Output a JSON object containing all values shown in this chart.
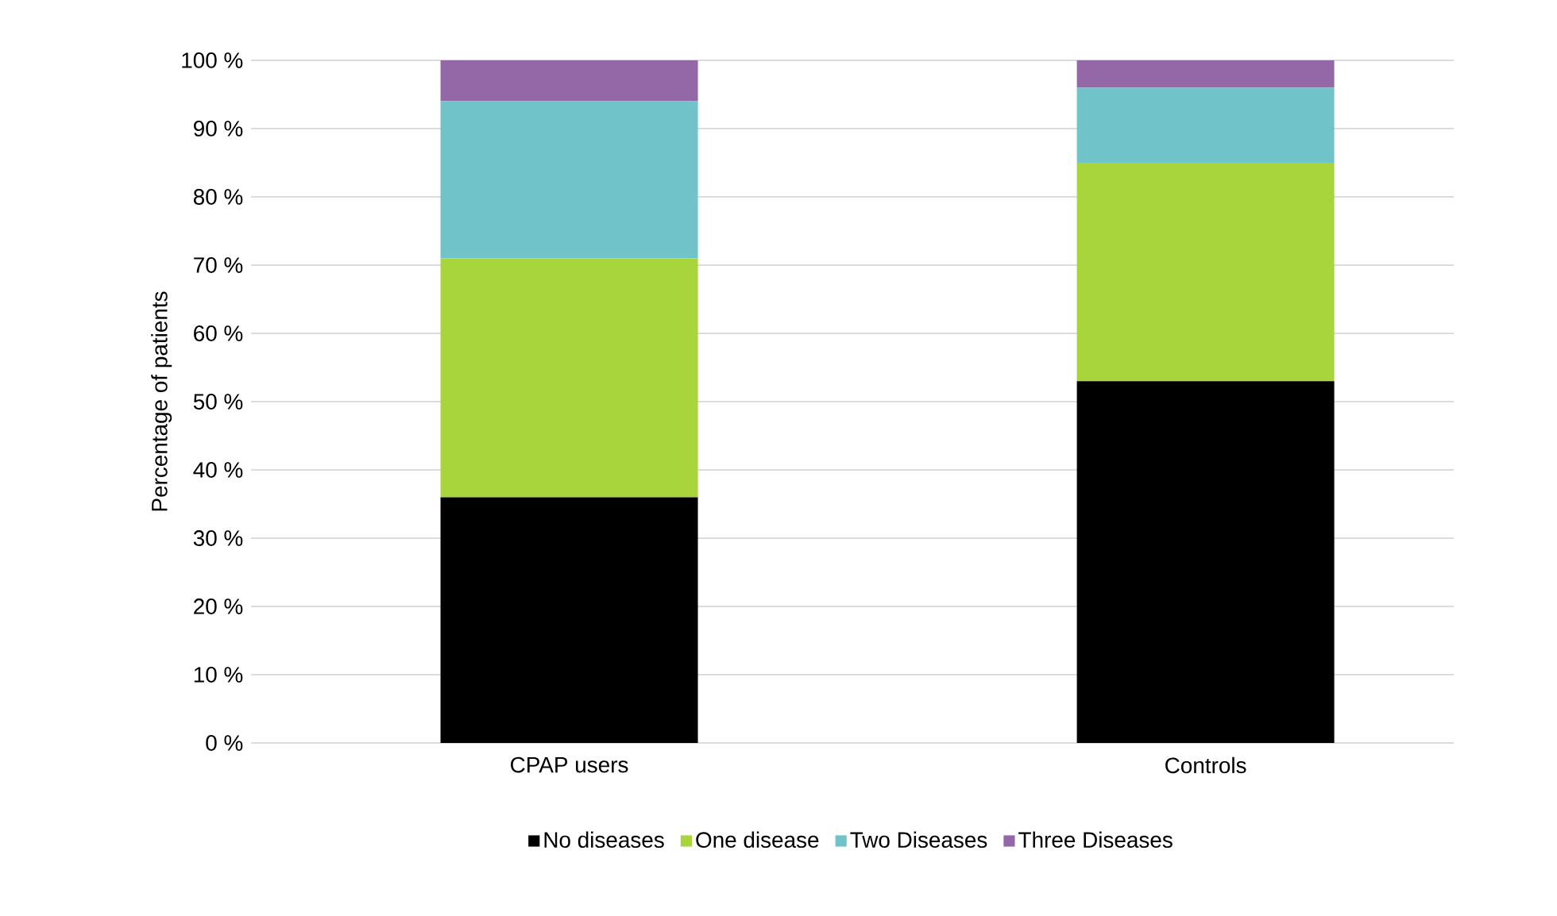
{
  "chart_data": {
    "type": "bar",
    "stacked": true,
    "ylabel": "Percentage of patients",
    "categories": [
      "CPAP users",
      "Controls"
    ],
    "series": [
      {
        "name": "No diseases",
        "color": "#000000",
        "values": [
          36,
          53
        ]
      },
      {
        "name": "One disease",
        "color": "#a9d53c",
        "values": [
          35,
          32
        ]
      },
      {
        "name": "Two Diseases",
        "color": "#70c4c9",
        "values": [
          23,
          11
        ]
      },
      {
        "name": "Three Diseases",
        "color": "#9467a6",
        "values": [
          6,
          4
        ]
      }
    ],
    "ylim": [
      0,
      100
    ],
    "yticks": [
      {
        "value": 0,
        "label": "0 %"
      },
      {
        "value": 10,
        "label": "10 %"
      },
      {
        "value": 20,
        "label": "20 %"
      },
      {
        "value": 30,
        "label": "30 %"
      },
      {
        "value": 40,
        "label": "40 %"
      },
      {
        "value": 50,
        "label": "50 %"
      },
      {
        "value": 60,
        "label": "60 %"
      },
      {
        "value": 70,
        "label": "70 %"
      },
      {
        "value": 80,
        "label": "80 %"
      },
      {
        "value": 90,
        "label": "90 %"
      },
      {
        "value": 100,
        "label": "100 %"
      }
    ],
    "grid": "y",
    "legend": "bottom"
  }
}
